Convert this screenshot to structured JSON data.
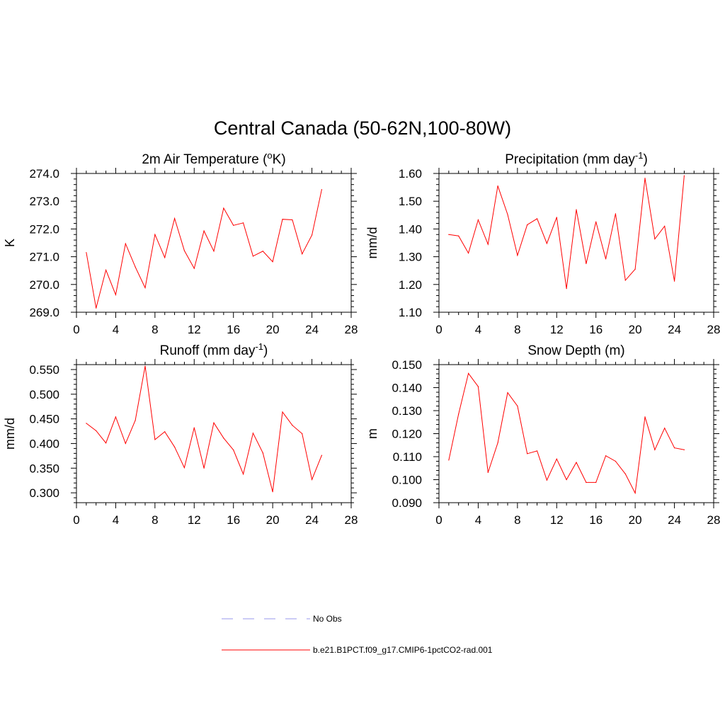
{
  "title": "Central Canada (50-62N,100-80W)",
  "colors": {
    "model_line": "#ff0000",
    "obs_line": "#9999ee",
    "axes": "#000000"
  },
  "legend": [
    {
      "label": "No Obs",
      "style": "dashed",
      "color": "#9999ee"
    },
    {
      "label": "b.e21.B1PCT.f09_g17.CMIP6-1pctCO2-rad.001",
      "style": "solid",
      "color": "#ff0000"
    }
  ],
  "chart_data": [
    {
      "type": "line",
      "title": "2m Air Temperature (",
      "title_sup": "o",
      "title_tail": "K)",
      "ylabel": "K",
      "xlim": [
        0,
        28
      ],
      "xticks": [
        "0",
        "4",
        "8",
        "12",
        "16",
        "20",
        "24",
        "28"
      ],
      "ylim": [
        269.0,
        274.0
      ],
      "yticks": [
        "269.0",
        "270.0",
        "271.0",
        "272.0",
        "273.0",
        "274.0"
      ],
      "x": [
        1,
        2,
        3,
        4,
        5,
        6,
        7,
        8,
        9,
        10,
        11,
        12,
        13,
        14,
        15,
        16,
        17,
        18,
        19,
        20,
        21,
        22,
        23,
        24,
        25
      ],
      "series": [
        {
          "name": "b.e21.B1PCT.f09_g17.CMIP6-1pctCO2-rad.001",
          "values": [
            271.15,
            269.15,
            270.52,
            269.63,
            271.47,
            270.63,
            269.88,
            271.8,
            270.97,
            272.38,
            271.22,
            270.58,
            271.93,
            271.2,
            272.75,
            272.13,
            272.22,
            271.02,
            271.2,
            270.82,
            272.35,
            272.33,
            271.1,
            271.78,
            273.42
          ]
        }
      ]
    },
    {
      "type": "line",
      "title": "Precipitation (mm day",
      "title_sup": "-1",
      "title_tail": ")",
      "ylabel": "mm/d",
      "xlim": [
        0,
        28
      ],
      "xticks": [
        "0",
        "4",
        "8",
        "12",
        "16",
        "20",
        "24",
        "28"
      ],
      "ylim": [
        1.1,
        1.6
      ],
      "yticks": [
        "1.10",
        "1.20",
        "1.30",
        "1.40",
        "1.50",
        "1.60"
      ],
      "x": [
        1,
        2,
        3,
        4,
        5,
        6,
        7,
        8,
        9,
        10,
        11,
        12,
        13,
        14,
        15,
        16,
        17,
        18,
        19,
        20,
        21,
        22,
        23,
        24,
        25
      ],
      "series": [
        {
          "name": "b.e21.B1PCT.f09_g17.CMIP6-1pctCO2-rad.001",
          "values": [
            1.38,
            1.375,
            1.313,
            1.433,
            1.345,
            1.555,
            1.452,
            1.305,
            1.415,
            1.437,
            1.348,
            1.442,
            1.185,
            1.47,
            1.275,
            1.426,
            1.292,
            1.455,
            1.215,
            1.255,
            1.583,
            1.364,
            1.41,
            1.212,
            1.592
          ]
        }
      ]
    },
    {
      "type": "line",
      "title": "Runoff (mm day",
      "title_sup": "-1",
      "title_tail": ")",
      "ylabel": "mm/d",
      "xlim": [
        0,
        28
      ],
      "xticks": [
        "0",
        "4",
        "8",
        "12",
        "16",
        "20",
        "24",
        "28"
      ],
      "ylim": [
        0.28,
        0.56
      ],
      "yticks": [
        "0.300",
        "0.350",
        "0.400",
        "0.450",
        "0.500",
        "0.550"
      ],
      "ytick_values": [
        0.3,
        0.35,
        0.4,
        0.45,
        0.5,
        0.55
      ],
      "x": [
        1,
        2,
        3,
        4,
        5,
        6,
        7,
        8,
        9,
        10,
        11,
        12,
        13,
        14,
        15,
        16,
        17,
        18,
        19,
        20,
        21,
        22,
        23,
        24,
        25
      ],
      "series": [
        {
          "name": "b.e21.B1PCT.f09_g17.CMIP6-1pctCO2-rad.001",
          "values": [
            0.441,
            0.426,
            0.401,
            0.454,
            0.4,
            0.447,
            0.557,
            0.408,
            0.424,
            0.393,
            0.351,
            0.432,
            0.35,
            0.442,
            0.411,
            0.387,
            0.338,
            0.421,
            0.381,
            0.302,
            0.464,
            0.437,
            0.42,
            0.327,
            0.376
          ]
        }
      ]
    },
    {
      "type": "line",
      "title": "Snow Depth (m)",
      "title_sup": "",
      "title_tail": "",
      "ylabel": "m",
      "xlim": [
        0,
        28
      ],
      "xticks": [
        "0",
        "4",
        "8",
        "12",
        "16",
        "20",
        "24",
        "28"
      ],
      "ylim": [
        0.09,
        0.15
      ],
      "yticks": [
        "0.090",
        "0.100",
        "0.110",
        "0.120",
        "0.130",
        "0.140",
        "0.150"
      ],
      "x": [
        1,
        2,
        3,
        4,
        5,
        6,
        7,
        8,
        9,
        10,
        11,
        12,
        13,
        14,
        15,
        16,
        17,
        18,
        19,
        20,
        21,
        22,
        23,
        24,
        25
      ],
      "series": [
        {
          "name": "b.e21.B1PCT.f09_g17.CMIP6-1pctCO2-rad.001",
          "values": [
            0.1085,
            0.1285,
            0.1462,
            0.1405,
            0.1031,
            0.116,
            0.1378,
            0.132,
            0.1113,
            0.1125,
            0.0998,
            0.109,
            0.1,
            0.1075,
            0.0988,
            0.0988,
            0.1104,
            0.108,
            0.1025,
            0.0942,
            0.1273,
            0.113,
            0.1224,
            0.1138,
            0.113
          ]
        }
      ]
    }
  ]
}
